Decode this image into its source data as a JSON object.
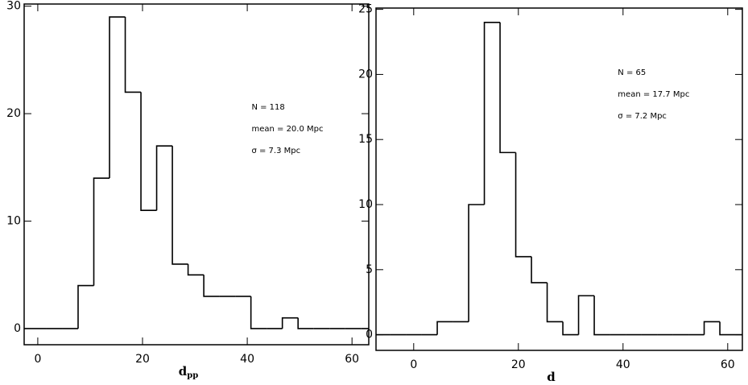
{
  "chart_data": [
    {
      "type": "histogram",
      "xlabel": "d",
      "xlabel_sub": "pp",
      "annotations": [
        "N = 118",
        "mean = 20.0 Mpc",
        "σ = 7.3 Mpc"
      ],
      "bins": [
        -4.3,
        -1.3,
        1.7,
        4.7,
        7.7,
        10.7,
        13.7,
        16.7,
        19.7,
        22.7,
        25.7,
        28.7,
        31.7,
        34.7,
        37.7,
        40.7,
        43.7,
        46.7,
        49.7,
        52.7,
        55.7,
        58.7,
        61.7,
        64.7
      ],
      "values": [
        0,
        0,
        0,
        0,
        4,
        14,
        29,
        22,
        11,
        17,
        6,
        5,
        3,
        3,
        3,
        0,
        0,
        1,
        0,
        0,
        0,
        0,
        0
      ],
      "color": "#000000",
      "xlim": [
        -2.6,
        63.2
      ],
      "ylim": [
        -1.5,
        30.2
      ],
      "xticks": [
        0,
        20,
        40,
        60
      ],
      "yticks": [
        0,
        10,
        20,
        30
      ]
    },
    {
      "type": "histogram",
      "xlabel": "d",
      "annotations": [
        "N = 65",
        "mean = 17.7 Mpc",
        "σ = 7.2 Mpc"
      ],
      "bins": [
        -7.5,
        -4.5,
        -1.5,
        1.5,
        4.5,
        7.5,
        10.5,
        13.5,
        16.5,
        19.5,
        22.5,
        25.5,
        28.5,
        31.5,
        34.5,
        37.5,
        40.5,
        43.5,
        46.5,
        49.5,
        52.5,
        55.5,
        58.5,
        61.5,
        64.5
      ],
      "values": [
        0,
        0,
        0,
        0,
        1,
        1,
        10,
        24,
        14,
        6,
        4,
        1,
        0,
        3,
        0,
        0,
        0,
        0,
        0,
        0,
        0,
        1,
        0,
        0
      ],
      "color": "#000000",
      "xlim": [
        -7.2,
        62.8
      ],
      "ylim": [
        -1.2,
        25.1
      ],
      "xticks": [
        0,
        20,
        40,
        60
      ],
      "yticks": [
        0,
        5,
        10,
        15,
        20,
        25
      ]
    }
  ]
}
